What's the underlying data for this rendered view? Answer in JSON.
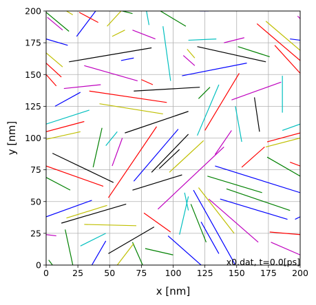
{
  "chart_data": {
    "type": "line",
    "xlabel": "x [nm]",
    "ylabel": "y [nm]",
    "xlim": [
      0,
      200
    ],
    "ylim": [
      0,
      200
    ],
    "xticks": [
      0,
      25,
      50,
      75,
      100,
      125,
      150,
      175,
      200
    ],
    "yticks": [
      0,
      25,
      50,
      75,
      100,
      125,
      150,
      175,
      200
    ],
    "grid": true,
    "annotation": "x0.dat, t=0.0[ps]",
    "colors": {
      "b": "#0000ff",
      "g": "#008000",
      "r": "#ff0000",
      "c": "#00bfbf",
      "m": "#bf00bf",
      "y": "#bfbf00",
      "k": "#000000"
    },
    "segments": [
      {
        "c": "g",
        "x1": 0,
        "y1": 199,
        "x2": 18,
        "y2": 184
      },
      {
        "c": "y",
        "x1": 16,
        "y1": 200,
        "x2": 21,
        "y2": 197
      },
      {
        "c": "m",
        "x1": 1,
        "y1": 195,
        "x2": 13,
        "y2": 185
      },
      {
        "c": "b",
        "x1": 24,
        "y1": 180,
        "x2": 39,
        "y2": 200
      },
      {
        "c": "r",
        "x1": 26,
        "y1": 199,
        "x2": 41,
        "y2": 191
      },
      {
        "c": "y",
        "x1": 48,
        "y1": 188,
        "x2": 59,
        "y2": 200
      },
      {
        "c": "g",
        "x1": 60,
        "y1": 200,
        "x2": 68,
        "y2": 198
      },
      {
        "c": "c",
        "x1": 79,
        "y1": 200,
        "x2": 81,
        "y2": 189
      },
      {
        "c": "g",
        "x1": 90,
        "y1": 200,
        "x2": 110,
        "y2": 188
      },
      {
        "c": "b",
        "x1": 128,
        "y1": 200,
        "x2": 121,
        "y2": 200
      },
      {
        "c": "m",
        "x1": 198,
        "y1": 196,
        "x2": 200,
        "y2": 194
      },
      {
        "c": "m",
        "x1": 68,
        "y1": 185,
        "x2": 86,
        "y2": 178
      },
      {
        "c": "c",
        "x1": 92,
        "y1": 188,
        "x2": 98,
        "y2": 145
      },
      {
        "c": "y",
        "x1": 52,
        "y1": 180,
        "x2": 62,
        "y2": 185
      },
      {
        "c": "b",
        "x1": 0,
        "y1": 178,
        "x2": 17,
        "y2": 173
      },
      {
        "c": "c",
        "x1": 112,
        "y1": 177,
        "x2": 134,
        "y2": 178
      },
      {
        "c": "m",
        "x1": 140,
        "y1": 175,
        "x2": 156,
        "y2": 179
      },
      {
        "c": "r",
        "x1": 166,
        "y1": 190,
        "x2": 200,
        "y2": 161
      },
      {
        "c": "y",
        "x1": 173,
        "y1": 192,
        "x2": 200,
        "y2": 169
      },
      {
        "c": "y",
        "x1": 0,
        "y1": 167,
        "x2": 13,
        "y2": 156
      },
      {
        "c": "k",
        "x1": 18,
        "y1": 160,
        "x2": 83,
        "y2": 171
      },
      {
        "c": "m",
        "x1": 108,
        "y1": 165,
        "x2": 117,
        "y2": 157
      },
      {
        "c": "y",
        "x1": 111,
        "y1": 170,
        "x2": 117,
        "y2": 163
      },
      {
        "c": "k",
        "x1": 119,
        "y1": 172,
        "x2": 173,
        "y2": 160
      },
      {
        "c": "g",
        "x1": 151,
        "y1": 172,
        "x2": 176,
        "y2": 164
      },
      {
        "c": "r",
        "x1": 180,
        "y1": 173,
        "x2": 200,
        "y2": 151
      },
      {
        "c": "b",
        "x1": 192,
        "y1": 178,
        "x2": 200,
        "y2": 177
      },
      {
        "c": "b",
        "x1": 59,
        "y1": 161,
        "x2": 69,
        "y2": 163
      },
      {
        "c": "r",
        "x1": 0,
        "y1": 159,
        "x2": 12,
        "y2": 148
      },
      {
        "c": "r",
        "x1": 0,
        "y1": 150,
        "x2": 8,
        "y2": 141
      },
      {
        "c": "m",
        "x1": 30,
        "y1": 157,
        "x2": 72,
        "y2": 145
      },
      {
        "c": "b",
        "x1": 107,
        "y1": 149,
        "x2": 158,
        "y2": 159
      },
      {
        "c": "r",
        "x1": 75,
        "y1": 146,
        "x2": 84,
        "y2": 142
      },
      {
        "c": "m",
        "x1": 14,
        "y1": 139,
        "x2": 43,
        "y2": 142
      },
      {
        "c": "k",
        "x1": 69,
        "y1": 137,
        "x2": 121,
        "y2": 140
      },
      {
        "c": "r",
        "x1": 34,
        "y1": 137,
        "x2": 95,
        "y2": 128
      },
      {
        "c": "c",
        "x1": 186,
        "y1": 149,
        "x2": 186,
        "y2": 120
      },
      {
        "c": "m",
        "x1": 146,
        "y1": 130,
        "x2": 185,
        "y2": 144
      },
      {
        "c": "g",
        "x1": 120,
        "y1": 131,
        "x2": 129,
        "y2": 140
      },
      {
        "c": "c",
        "x1": 119,
        "y1": 102,
        "x2": 136,
        "y2": 142
      },
      {
        "c": "r",
        "x1": 125,
        "y1": 106,
        "x2": 152,
        "y2": 151
      },
      {
        "c": "b",
        "x1": 7,
        "y1": 125,
        "x2": 27,
        "y2": 136
      },
      {
        "c": "c",
        "x1": 0,
        "y1": 111,
        "x2": 34,
        "y2": 122
      },
      {
        "c": "y",
        "x1": 42,
        "y1": 127,
        "x2": 92,
        "y2": 119
      },
      {
        "c": "k",
        "x1": 62,
        "y1": 104,
        "x2": 112,
        "y2": 121
      },
      {
        "c": "k",
        "x1": 164,
        "y1": 132,
        "x2": 168,
        "y2": 105
      },
      {
        "c": "c",
        "x1": 149,
        "y1": 125,
        "x2": 154,
        "y2": 97
      },
      {
        "c": "r",
        "x1": 0,
        "y1": 105,
        "x2": 30,
        "y2": 113
      },
      {
        "c": "y",
        "x1": 0,
        "y1": 99,
        "x2": 27,
        "y2": 105
      },
      {
        "c": "c",
        "x1": 186,
        "y1": 106,
        "x2": 200,
        "y2": 111
      },
      {
        "c": "r",
        "x1": 174,
        "y1": 97,
        "x2": 200,
        "y2": 104
      },
      {
        "c": "y",
        "x1": 173,
        "y1": 93,
        "x2": 200,
        "y2": 100
      },
      {
        "c": "c",
        "x1": 47,
        "y1": 94,
        "x2": 56,
        "y2": 105
      },
      {
        "c": "m",
        "x1": 52,
        "y1": 78,
        "x2": 60,
        "y2": 100
      },
      {
        "c": "g",
        "x1": 37,
        "y1": 77,
        "x2": 44,
        "y2": 108
      },
      {
        "c": "r",
        "x1": 49,
        "y1": 53,
        "x2": 87,
        "y2": 109
      },
      {
        "c": "b",
        "x1": 69,
        "y1": 66,
        "x2": 104,
        "y2": 107
      },
      {
        "c": "k",
        "x1": 83,
        "y1": 73,
        "x2": 112,
        "y2": 103
      },
      {
        "c": "k",
        "x1": 89,
        "y1": 76,
        "x2": 105,
        "y2": 91
      },
      {
        "c": "y",
        "x1": 97,
        "y1": 73,
        "x2": 124,
        "y2": 98
      },
      {
        "c": "m",
        "x1": 133,
        "y1": 87,
        "x2": 146,
        "y2": 106
      },
      {
        "c": "r",
        "x1": 154,
        "y1": 77,
        "x2": 172,
        "y2": 93
      },
      {
        "c": "k",
        "x1": 5,
        "y1": 88,
        "x2": 53,
        "y2": 65
      },
      {
        "c": "r",
        "x1": 0,
        "y1": 78,
        "x2": 45,
        "y2": 62
      },
      {
        "c": "g",
        "x1": 0,
        "y1": 69,
        "x2": 19,
        "y2": 59
      },
      {
        "c": "b",
        "x1": 133,
        "y1": 78,
        "x2": 200,
        "y2": 57
      },
      {
        "c": "g",
        "x1": 174,
        "y1": 85,
        "x2": 200,
        "y2": 70
      },
      {
        "c": "r",
        "x1": 192,
        "y1": 81,
        "x2": 200,
        "y2": 78
      },
      {
        "c": "m",
        "x1": 88,
        "y1": 44,
        "x2": 140,
        "y2": 93
      },
      {
        "c": "k",
        "x1": 68,
        "y1": 59,
        "x2": 107,
        "y2": 71
      },
      {
        "c": "g",
        "x1": 127,
        "y1": 70,
        "x2": 170,
        "y2": 57
      },
      {
        "c": "g",
        "x1": 142,
        "y1": 60,
        "x2": 192,
        "y2": 43
      },
      {
        "c": "b",
        "x1": 137,
        "y1": 52,
        "x2": 190,
        "y2": 36
      },
      {
        "c": "b",
        "x1": 0,
        "y1": 38,
        "x2": 36,
        "y2": 51
      },
      {
        "c": "y",
        "x1": 16,
        "y1": 37,
        "x2": 48,
        "y2": 47
      },
      {
        "c": "k",
        "x1": 12,
        "y1": 33,
        "x2": 63,
        "y2": 48
      },
      {
        "c": "c",
        "x1": 109,
        "y1": 57,
        "x2": 112,
        "y2": 43
      },
      {
        "c": "c",
        "x1": 105,
        "y1": 24,
        "x2": 112,
        "y2": 54
      },
      {
        "c": "y",
        "x1": 120,
        "y1": 61,
        "x2": 148,
        "y2": 25
      },
      {
        "c": "b",
        "x1": 116,
        "y1": 59,
        "x2": 149,
        "y2": 0
      },
      {
        "c": "m",
        "x1": 128,
        "y1": 52,
        "x2": 167,
        "y2": 18
      },
      {
        "c": "g",
        "x1": 114,
        "y1": 48,
        "x2": 126,
        "y2": 18
      },
      {
        "c": "b",
        "x1": 196,
        "y1": 36,
        "x2": 200,
        "y2": 38
      },
      {
        "c": "y",
        "x1": 30,
        "y1": 32,
        "x2": 71,
        "y2": 31
      },
      {
        "c": "r",
        "x1": 77,
        "y1": 41,
        "x2": 98,
        "y2": 26
      },
      {
        "c": "m",
        "x1": 0,
        "y1": 24,
        "x2": 8,
        "y2": 23
      },
      {
        "c": "g",
        "x1": 15,
        "y1": 28,
        "x2": 21,
        "y2": 0
      },
      {
        "c": "c",
        "x1": 27,
        "y1": 15,
        "x2": 47,
        "y2": 25
      },
      {
        "c": "k",
        "x1": 49,
        "y1": 9,
        "x2": 85,
        "y2": 30
      },
      {
        "c": "b",
        "x1": 36,
        "y1": 0,
        "x2": 47,
        "y2": 19
      },
      {
        "c": "b",
        "x1": 96,
        "y1": 23,
        "x2": 122,
        "y2": 0
      },
      {
        "c": "g",
        "x1": 78,
        "y1": 13,
        "x2": 100,
        "y2": 8
      },
      {
        "c": "g",
        "x1": 68,
        "y1": 18,
        "x2": 76,
        "y2": 0
      },
      {
        "c": "y",
        "x1": 56,
        "y1": 0,
        "x2": 69,
        "y2": 17
      },
      {
        "c": "b",
        "x1": 122,
        "y1": 34,
        "x2": 136,
        "y2": 9
      },
      {
        "c": "r",
        "x1": 176,
        "y1": 26,
        "x2": 200,
        "y2": 24
      },
      {
        "c": "m",
        "x1": 177,
        "y1": 18,
        "x2": 200,
        "y2": 8
      },
      {
        "c": "g",
        "x1": 2,
        "y1": 4,
        "x2": 5,
        "y2": 0
      }
    ]
  }
}
